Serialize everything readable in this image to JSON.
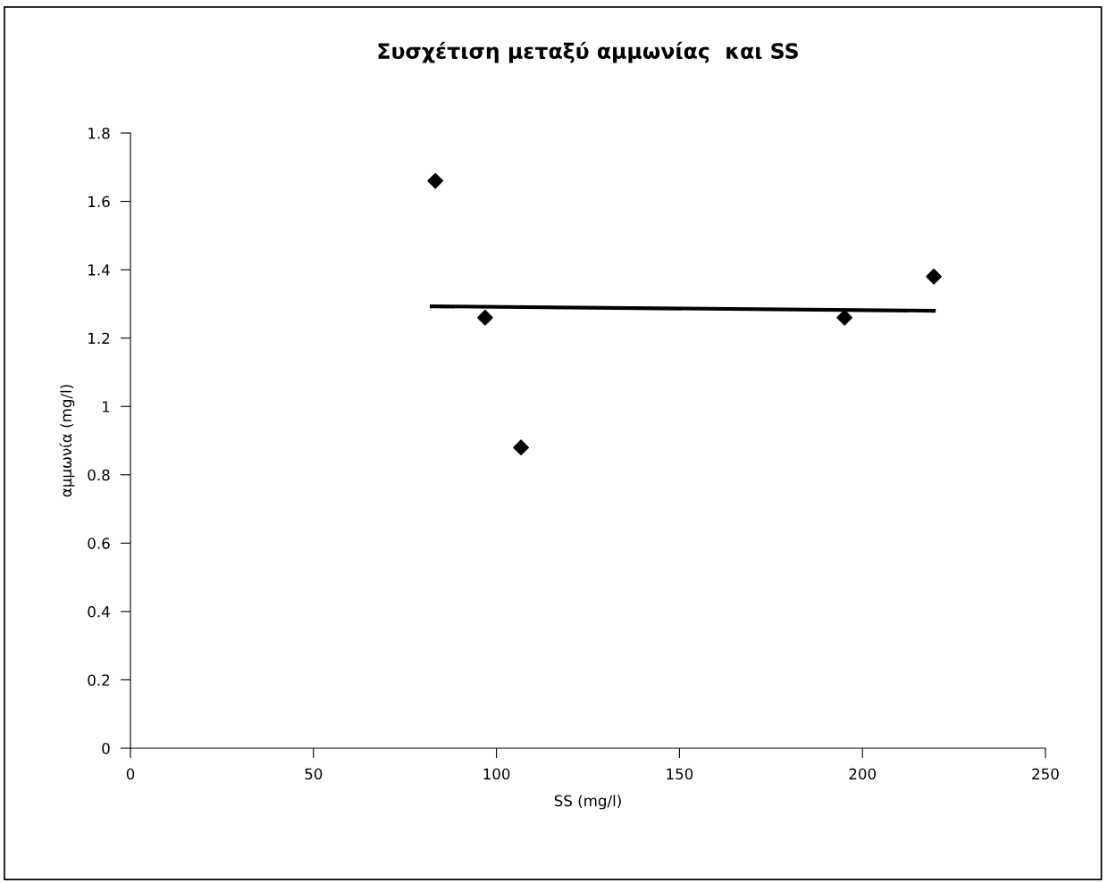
{
  "chart_data": {
    "type": "scatter",
    "title": "Συσχέτιση μεταξύ αμμωνίας  και SS",
    "xlabel": "SS (mg/l)",
    "ylabel": "αμμωνία (mg/l)",
    "series": [
      {
        "color": "#000000",
        "marker": "diamond",
        "x": [
          83.3,
          96.9,
          106.7,
          195.1,
          219.5
        ],
        "values": [
          1.66,
          1.26,
          0.88,
          1.26,
          1.38
        ]
      },
      {
        "type": "line",
        "color": "#000000",
        "marker": "none",
        "line_style": "solid",
        "x": [
          82.3,
          219.5
        ],
        "values": [
          1.293,
          1.28
        ]
      }
    ],
    "xlim": [
      0,
      250
    ],
    "xticks": [
      0,
      50,
      100,
      150,
      200,
      250
    ],
    "ylim": [
      0,
      1.8
    ],
    "yticks": [
      0,
      0.2,
      0.4,
      0.6,
      0.8,
      1,
      1.2,
      1.4,
      1.6,
      1.8
    ],
    "grid": false,
    "legend": false
  }
}
